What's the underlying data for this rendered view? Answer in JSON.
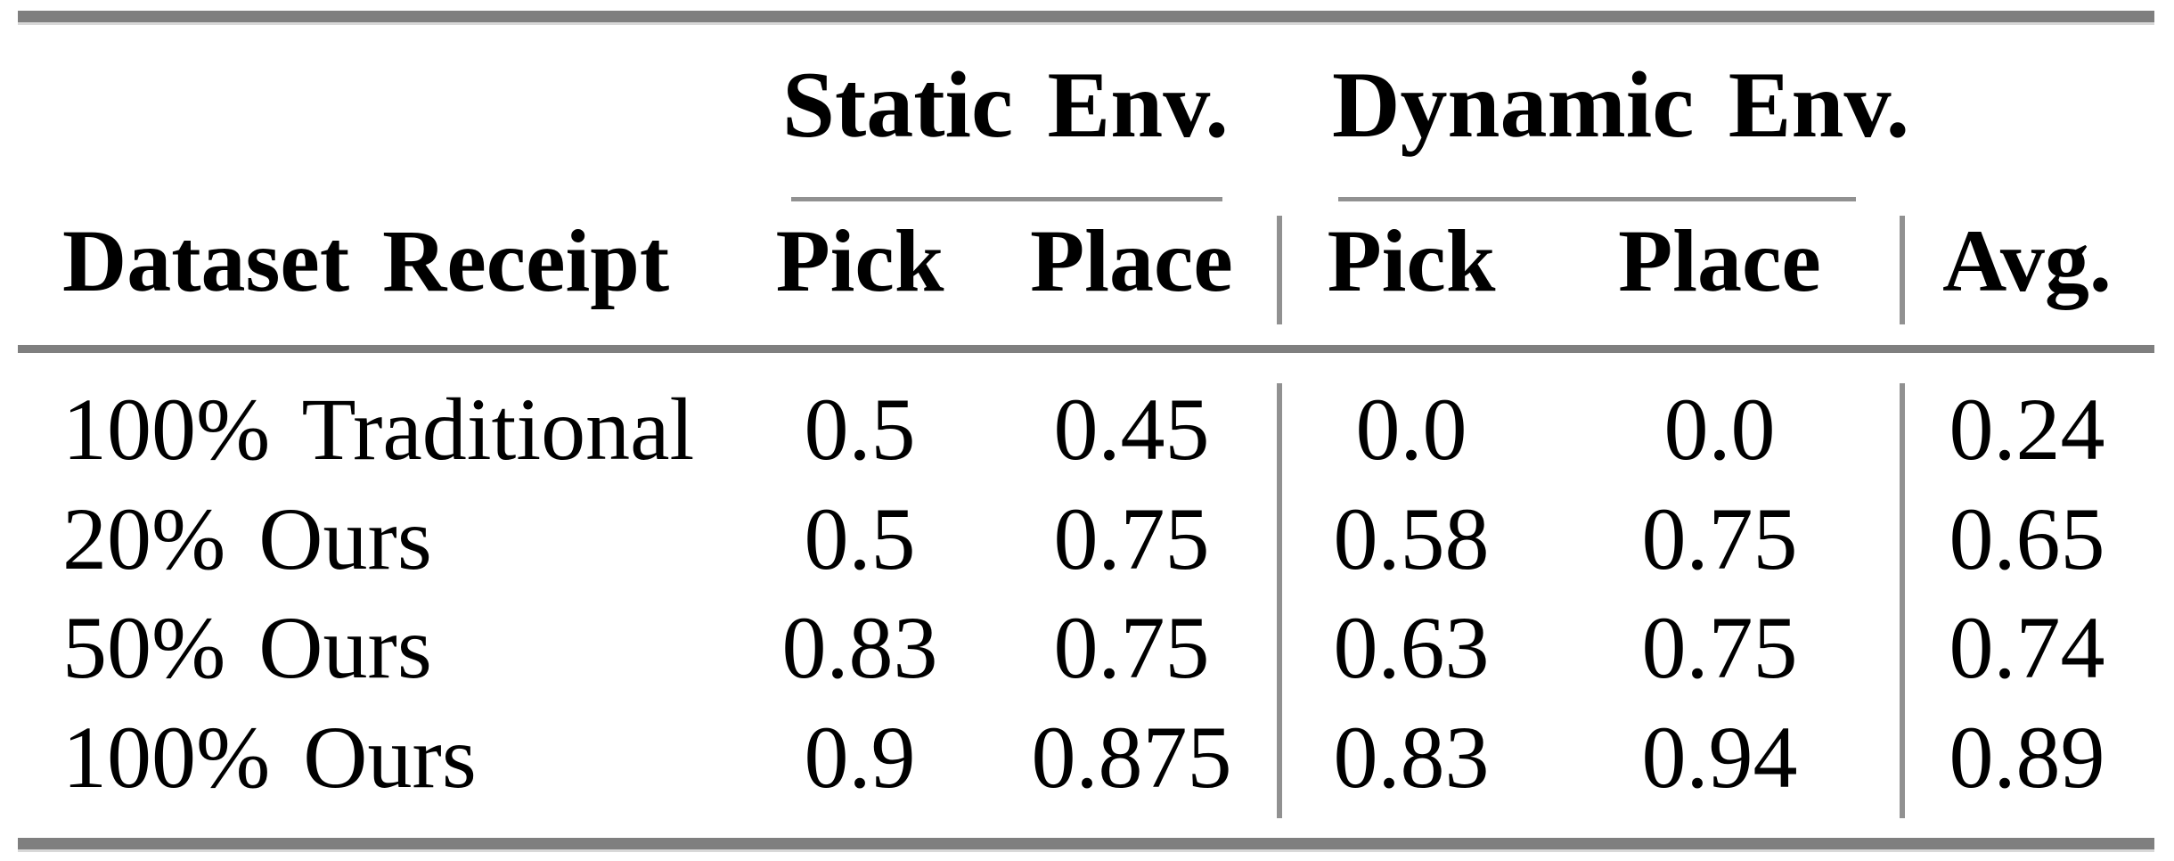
{
  "table": {
    "groups": [
      {
        "label": "Static Env."
      },
      {
        "label": "Dynamic Env."
      }
    ],
    "headers": {
      "label": "Dataset Receipt",
      "static_pick": "Pick",
      "static_place": "Place",
      "dynamic_pick": "Pick",
      "dynamic_place": "Place",
      "avg": "Avg."
    },
    "rows": [
      {
        "label": "100% Traditional",
        "static_pick": "0.5",
        "static_place": "0.45",
        "dynamic_pick": "0.0",
        "dynamic_place": "0.0",
        "avg": "0.24"
      },
      {
        "label": "20% Ours",
        "static_pick": "0.5",
        "static_place": "0.75",
        "dynamic_pick": "0.58",
        "dynamic_place": "0.75",
        "avg": "0.65"
      },
      {
        "label": "50% Ours",
        "static_pick": "0.83",
        "static_place": "0.75",
        "dynamic_pick": "0.63",
        "dynamic_place": "0.75",
        "avg": "0.74"
      },
      {
        "label": "100% Ours",
        "static_pick": "0.9",
        "static_place": "0.875",
        "dynamic_pick": "0.83",
        "dynamic_place": "0.94",
        "avg": "0.89"
      }
    ]
  },
  "colors": {
    "background": "#ffffff",
    "text": "#000000",
    "rule_heavy": "#7f7f7f",
    "rule_light": "#919191"
  }
}
